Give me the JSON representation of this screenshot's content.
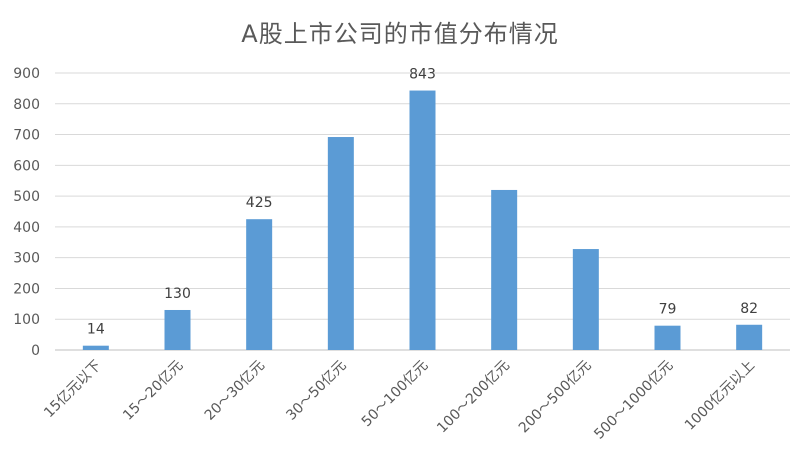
{
  "chart_data": {
    "type": "bar",
    "title": "A股上市公司的市值分布情况",
    "xlabel": "",
    "ylabel": "",
    "ylim": [
      0,
      900
    ],
    "yticks": [
      0,
      100,
      200,
      300,
      400,
      500,
      600,
      700,
      800,
      900
    ],
    "grid": true,
    "legend": "none",
    "bar_color": "#5B9BD5",
    "categories": [
      "15亿元以下",
      "15～20亿元",
      "20～30亿元",
      "30～50亿元",
      "50～100亿元",
      "100～200亿元",
      "200～500亿元",
      "500～1000亿元",
      "1000亿元以上"
    ],
    "values": [
      14,
      130,
      425,
      692,
      843,
      520,
      328,
      79,
      82
    ],
    "data_labels": [
      "14",
      "130",
      "425",
      "",
      "843",
      "",
      "",
      "79",
      "82"
    ]
  }
}
